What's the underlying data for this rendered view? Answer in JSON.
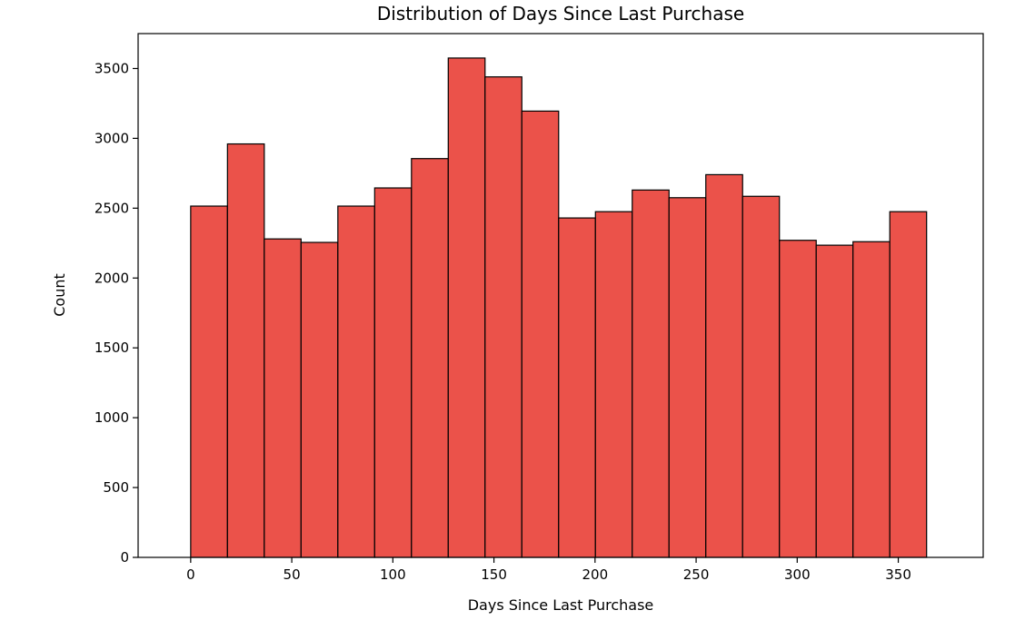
{
  "chart_data": {
    "type": "bar",
    "subtype": "histogram",
    "title": "Distribution of Days Since Last Purchase",
    "xlabel": "Days Since Last Purchase",
    "ylabel": "Count",
    "xlim": [
      -26,
      392
    ],
    "ylim": [
      0,
      3750
    ],
    "xticks": [
      0,
      50,
      100,
      150,
      200,
      250,
      300,
      350
    ],
    "yticks": [
      0,
      500,
      1000,
      1500,
      2000,
      2500,
      3000,
      3500
    ],
    "grid": false,
    "bar_color": "#eb524a",
    "edge_color": "#000000",
    "bin_edges": [
      0,
      18.2,
      36.4,
      54.6,
      72.8,
      91,
      109.2,
      127.4,
      145.6,
      163.8,
      182,
      200.2,
      218.4,
      236.6,
      254.8,
      273,
      291.2,
      309.4,
      327.6,
      345.8,
      364
    ],
    "values": [
      2515,
      2960,
      2280,
      2255,
      2515,
      2645,
      2855,
      3575,
      3440,
      3195,
      2430,
      2475,
      2630,
      2575,
      2740,
      2585,
      2270,
      2235,
      2260,
      2475
    ]
  }
}
